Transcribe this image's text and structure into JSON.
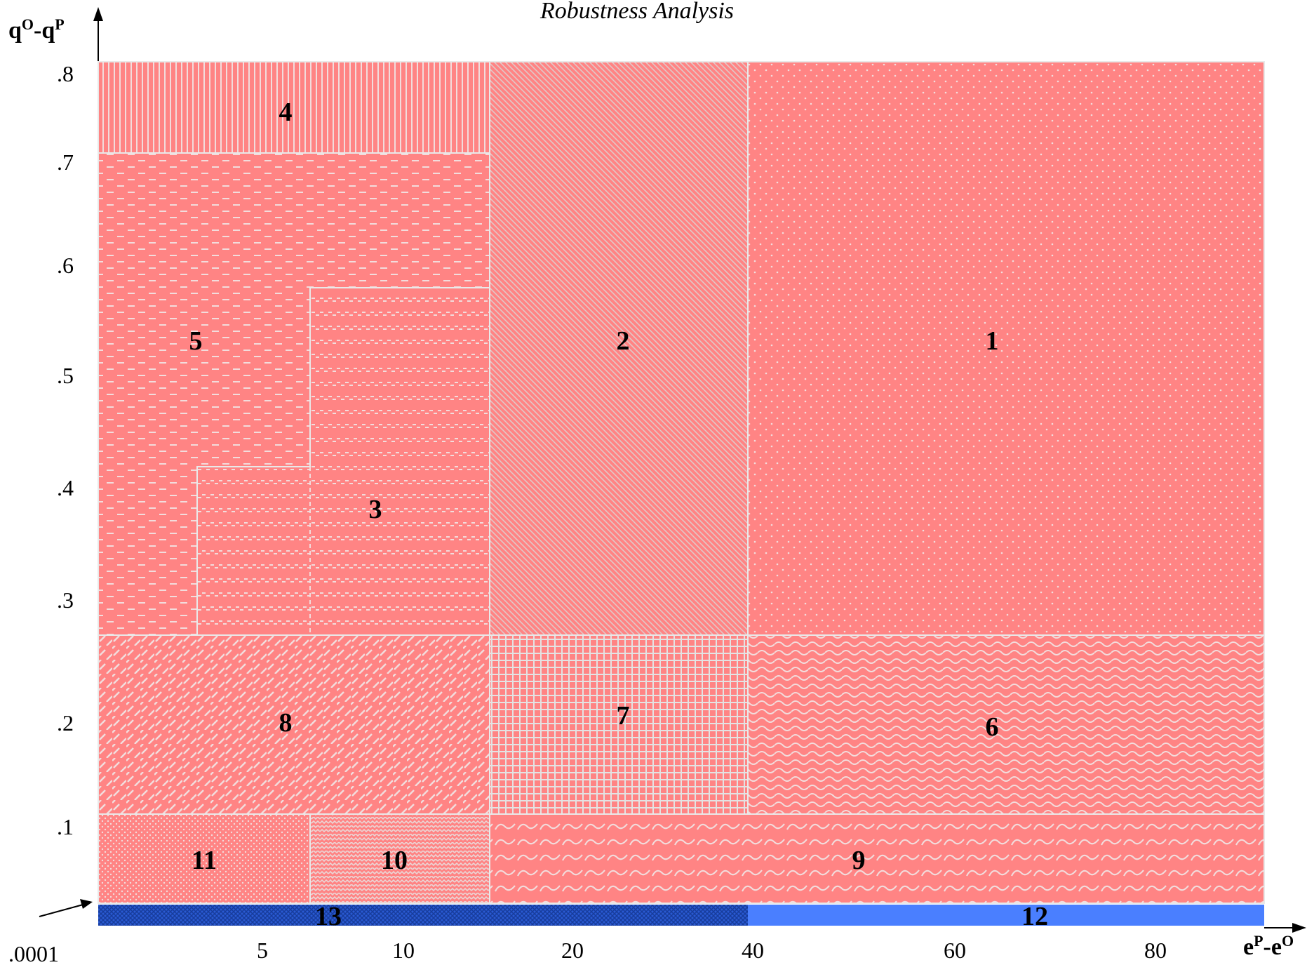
{
  "title": "Robustness Analysis",
  "y_axis": {
    "label_base": "q",
    "label_sup1": "O",
    "label_mid": "-q",
    "label_sup2": "P",
    "ticks": [
      ".8",
      ".7",
      ".6",
      ".5",
      ".4",
      ".3",
      ".2",
      ".1"
    ]
  },
  "x_axis": {
    "label_base": "e",
    "label_sup1": "P",
    "label_mid": "-e",
    "label_sup2": "O",
    "origin_label": ".0001",
    "ticks": [
      "5",
      "10",
      "20",
      "40",
      "60",
      "80"
    ]
  },
  "colors": {
    "region_fill": "#ff8484",
    "pattern_light": "#f2dcdc",
    "band_dark": "#1f4fbf",
    "band_light": "#4a7fff",
    "region_border": "#e9e9e9"
  },
  "regions": [
    {
      "id": "1",
      "label": "1",
      "pattern": "dots"
    },
    {
      "id": "2",
      "label": "2",
      "pattern": "diagonal-fine"
    },
    {
      "id": "3",
      "label": "3",
      "pattern": "dashed-rows"
    },
    {
      "id": "4",
      "label": "4",
      "pattern": "vertical-lines"
    },
    {
      "id": "5",
      "label": "5",
      "pattern": "dashes"
    },
    {
      "id": "6",
      "label": "6",
      "pattern": "waves"
    },
    {
      "id": "7",
      "label": "7",
      "pattern": "grid"
    },
    {
      "id": "8",
      "label": "8",
      "pattern": "diagonal-dashes"
    },
    {
      "id": "9",
      "label": "9",
      "pattern": "scallops"
    },
    {
      "id": "10",
      "label": "10",
      "pattern": "zigzag"
    },
    {
      "id": "11",
      "label": "11",
      "pattern": "fine-dots"
    },
    {
      "id": "12",
      "label": "12",
      "pattern": "solid-blue"
    },
    {
      "id": "13",
      "label": "13",
      "pattern": "dark-blue-hatch"
    }
  ]
}
